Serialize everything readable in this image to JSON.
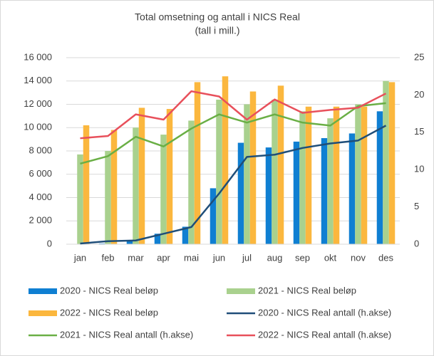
{
  "chart_data": {
    "type": "bar",
    "title": "Total omsetning og antall i NICS Real",
    "subtitle": "(tall i mill.)",
    "categories": [
      "jan",
      "feb",
      "mar",
      "apr",
      "mai",
      "jun",
      "jul",
      "aug",
      "sep",
      "okt",
      "nov",
      "des"
    ],
    "ylim": [
      0,
      16000
    ],
    "yticks": [
      0,
      {
        "value": 2000,
        "label": "2 000"
      },
      {
        "value": 4000,
        "label": "4 000"
      },
      {
        "value": 6000,
        "label": "6 000"
      },
      {
        "value": 8000,
        "label": "8 000"
      },
      {
        "value": 10000,
        "label": "10 000"
      },
      {
        "value": 12000,
        "label": "12 000"
      },
      {
        "value": 14000,
        "label": "14 000"
      },
      {
        "value": 16000,
        "label": "16 000"
      }
    ],
    "y2lim": [
      0,
      25
    ],
    "y2ticks": [
      0,
      5,
      10,
      15,
      20,
      25
    ],
    "grid": true,
    "series": [
      {
        "name": "2020 - NICS Real beløp",
        "type": "bar",
        "color": "#0f7fd2",
        "values": [
          30,
          60,
          300,
          900,
          1500,
          4800,
          8700,
          8300,
          8800,
          9100,
          9500,
          11400
        ]
      },
      {
        "name": "2021 - NICS Real beløp",
        "type": "bar",
        "color": "#a9d18e",
        "values": [
          7700,
          8000,
          10000,
          9400,
          10600,
          12400,
          12000,
          12400,
          11400,
          10800,
          12000,
          14000
        ]
      },
      {
        "name": "2022 - NICS Real beløp",
        "type": "bar",
        "color": "#fbb73e",
        "values": [
          10200,
          9800,
          11700,
          11600,
          13900,
          14400,
          13100,
          13600,
          11800,
          11800,
          11800,
          13900
        ]
      },
      {
        "name": "2020 - NICS Real antall (h.akse)",
        "type": "line",
        "axis": "y2",
        "color": "#1f4e79",
        "values": [
          0.1,
          0.4,
          0.5,
          1.4,
          2.3,
          6.8,
          11.7,
          12.0,
          12.9,
          13.5,
          13.9,
          15.9
        ]
      },
      {
        "name": "2021 - NICS Real antall (h.akse)",
        "type": "line",
        "axis": "y2",
        "color": "#6aaf45",
        "values": [
          10.8,
          11.8,
          14.4,
          13.1,
          15.5,
          17.4,
          16.3,
          17.4,
          16.3,
          15.9,
          18.5,
          18.9
        ]
      },
      {
        "name": "2022 - NICS Real antall (h.akse)",
        "type": "line",
        "axis": "y2",
        "color": "#e8505b",
        "values": [
          14.2,
          14.5,
          17.4,
          16.7,
          20.5,
          19.8,
          16.7,
          19.4,
          17.6,
          18.0,
          18.3,
          20.2
        ]
      }
    ]
  }
}
